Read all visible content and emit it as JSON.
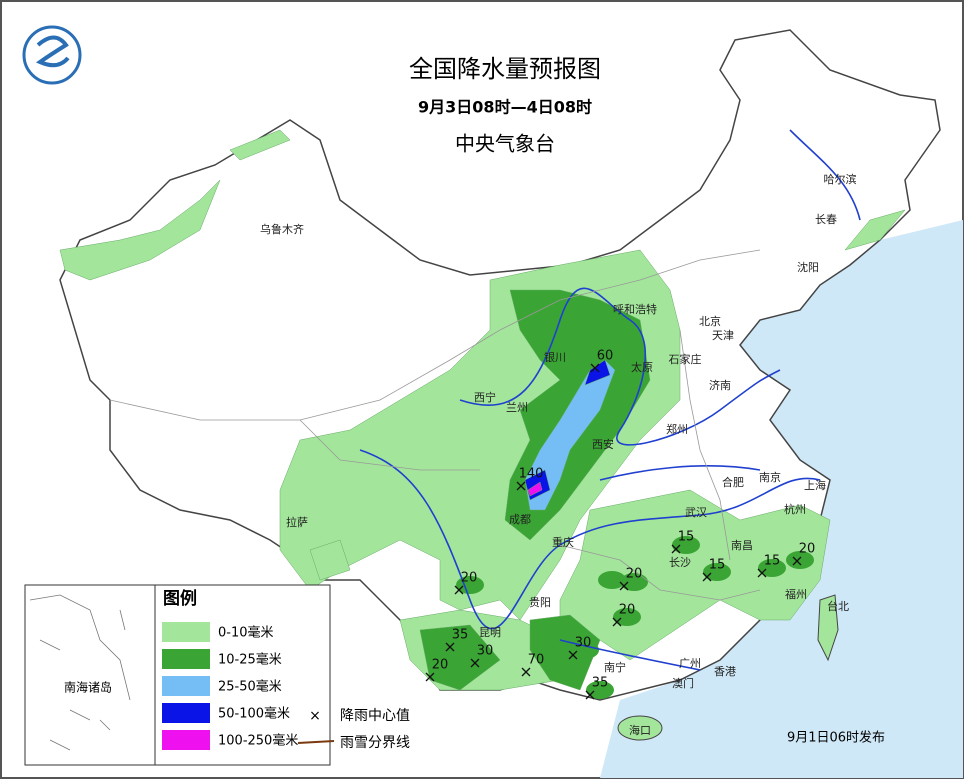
{
  "header": {
    "title": "全国降水量预报图",
    "period": "9月3日08时—4日08时",
    "agency": "中央气象台"
  },
  "legend": {
    "title": "图例",
    "items": [
      {
        "label": "0-10毫米",
        "color": "#a3e69b"
      },
      {
        "label": "10-25毫米",
        "color": "#3aa534"
      },
      {
        "label": "25-50毫米",
        "color": "#74bef5"
      },
      {
        "label": "50-100毫米",
        "color": "#0a14e6"
      },
      {
        "label": "100-250毫米",
        "color": "#ee10ee"
      }
    ],
    "center_label": "降雨中心值",
    "boundary_label": "雨雪分界线"
  },
  "cities": [
    "乌鲁木齐",
    "哈尔滨",
    "长春",
    "沈阳",
    "呼和浩特",
    "北京",
    "天津",
    "石家庄",
    "银川",
    "太原",
    "西宁",
    "兰州",
    "济南",
    "郑州",
    "西安",
    "合肥",
    "南京",
    "上海",
    "拉萨",
    "成都",
    "武汉",
    "杭州",
    "重庆",
    "长沙",
    "南昌",
    "福州",
    "贵阳",
    "台北",
    "昆明",
    "南宁",
    "广州",
    "香港",
    "澳门",
    "海口"
  ],
  "rain_centers": [
    60,
    140,
    15,
    15,
    15,
    20,
    20,
    20,
    20,
    35,
    30,
    30,
    70,
    35,
    20
  ],
  "inset_label": "南海诸岛",
  "footer": "9月1日06时发布"
}
